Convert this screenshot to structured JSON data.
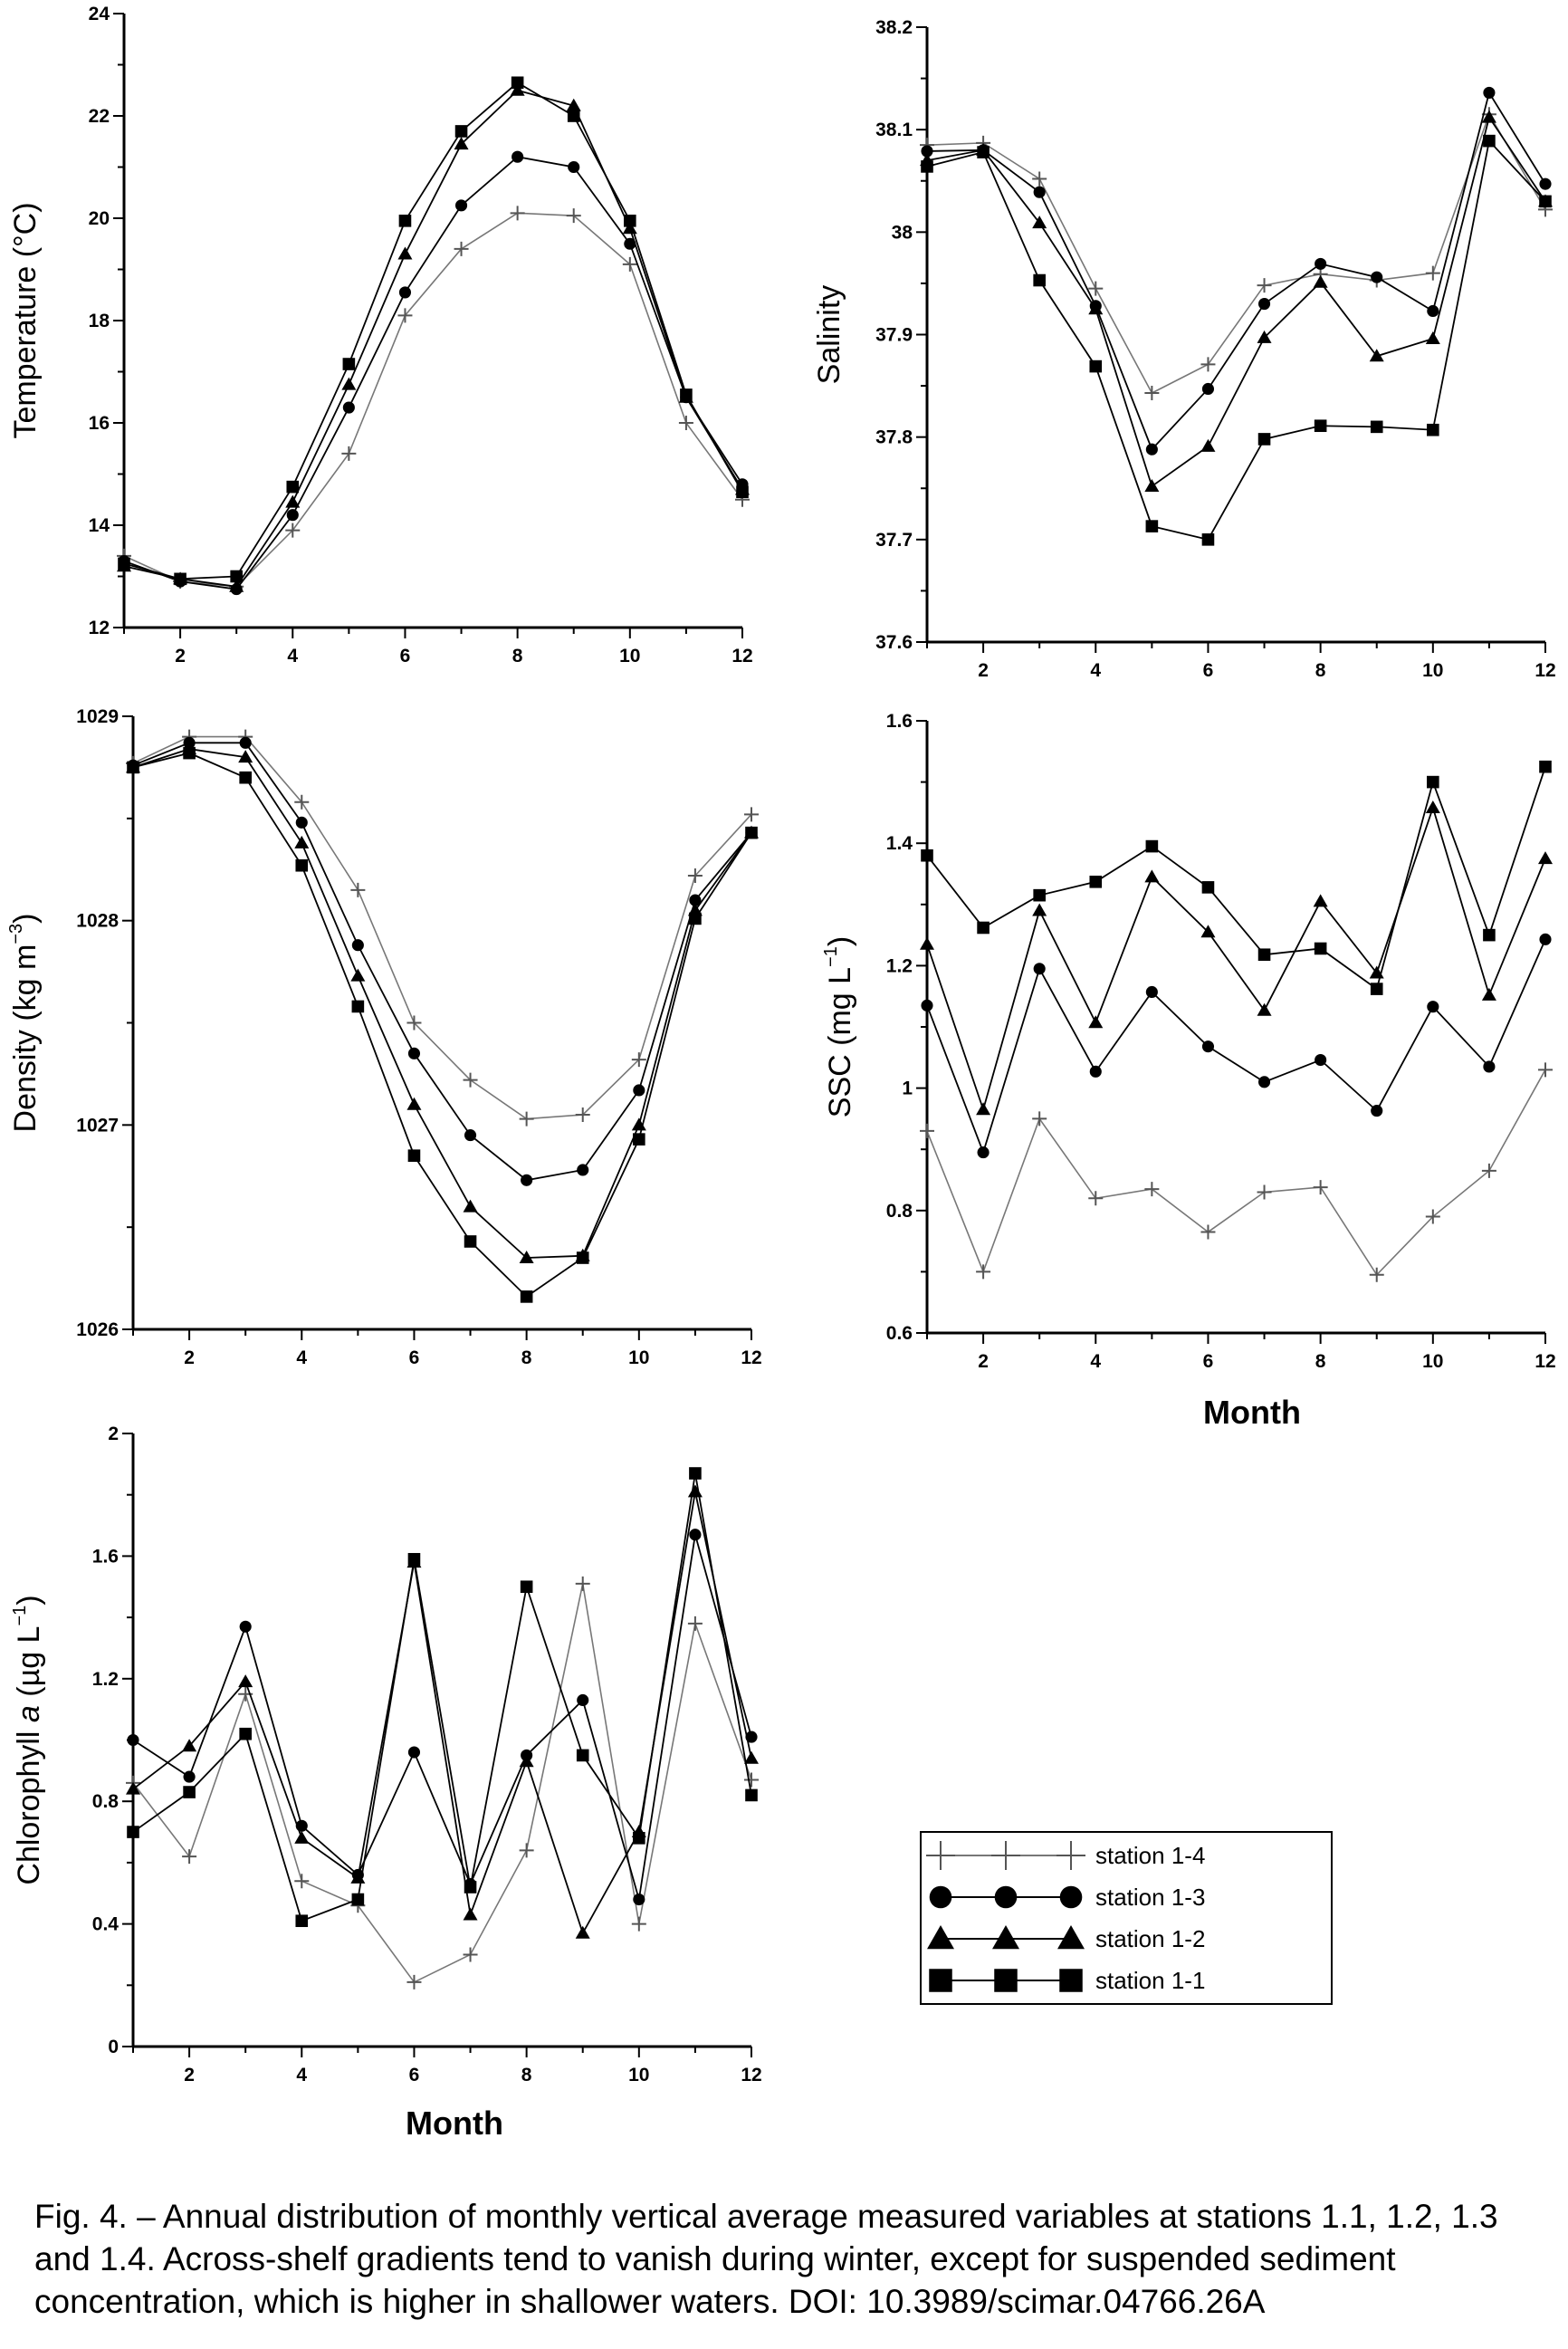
{
  "figure": {
    "month_label": "Month",
    "caption": "Fig. 4. – Annual distribution of monthly vertical average measured variables at stations 1.1, 1.2, 1.3 and 1.4. Across-shelf gradients tend to vanish during winter, except for suspended sediment concentration, which is higher in shallower waters. DOI: 10.3989/scimar.04766.26A"
  },
  "legend": [
    {
      "name": "station 1-4",
      "marker": "plus"
    },
    {
      "name": "station 1-3",
      "marker": "circle"
    },
    {
      "name": "station 1-2",
      "marker": "triangle"
    },
    {
      "name": "station 1-1",
      "marker": "square"
    }
  ],
  "colors": {
    "station 1-4": "#777777",
    "station 1-3": "#000000",
    "station 1-2": "#000000",
    "station 1-1": "#000000"
  },
  "chart_data": [
    {
      "id": "temperature",
      "type": "line",
      "ylabel": "Temperature (°C)",
      "xlabel": "",
      "xlim": [
        1,
        12
      ],
      "ylim": [
        12,
        24
      ],
      "x_ticks": [
        "2",
        "4",
        "6",
        "8",
        "10",
        "12"
      ],
      "y_ticks": [
        "12",
        "14",
        "16",
        "18",
        "20",
        "22",
        "24"
      ],
      "x": [
        1,
        2,
        3,
        4,
        5,
        6,
        7,
        8,
        9,
        10,
        11,
        12
      ],
      "series": [
        {
          "name": "station 1-4",
          "values": [
            13.4,
            12.9,
            12.8,
            13.9,
            15.4,
            18.1,
            19.4,
            20.1,
            20.05,
            19.1,
            16.0,
            14.5
          ]
        },
        {
          "name": "station 1-3",
          "values": [
            13.3,
            12.9,
            12.75,
            14.2,
            16.3,
            18.55,
            20.25,
            21.2,
            21.0,
            19.5,
            16.5,
            14.8
          ]
        },
        {
          "name": "station 1-2",
          "values": [
            13.2,
            12.95,
            12.8,
            14.45,
            16.75,
            19.3,
            21.45,
            22.5,
            22.2,
            19.8,
            16.5,
            14.7
          ]
        },
        {
          "name": "station 1-1",
          "values": [
            13.25,
            12.95,
            13.0,
            14.75,
            17.15,
            19.95,
            21.7,
            22.65,
            22.0,
            19.95,
            16.55,
            14.65
          ]
        }
      ]
    },
    {
      "id": "salinity",
      "type": "line",
      "ylabel": "Salinity",
      "xlabel": "",
      "xlim": [
        1,
        12
      ],
      "ylim": [
        37.6,
        38.2
      ],
      "x_ticks": [
        "2",
        "4",
        "6",
        "8",
        "10",
        "12"
      ],
      "y_ticks": [
        "37.6",
        "37.7",
        "37.8",
        "37.9",
        "38",
        "38.1",
        "38.2"
      ],
      "x": [
        1,
        2,
        3,
        4,
        5,
        6,
        7,
        8,
        9,
        10,
        11,
        12
      ],
      "series": [
        {
          "name": "station 1-4",
          "values": [
            38.085,
            38.087,
            38.052,
            37.945,
            37.843,
            37.871,
            37.948,
            37.959,
            37.953,
            37.96,
            38.115,
            38.022
          ]
        },
        {
          "name": "station 1-3",
          "values": [
            38.079,
            38.08,
            38.039,
            37.928,
            37.788,
            37.847,
            37.93,
            37.969,
            37.956,
            37.923,
            38.136,
            38.047
          ]
        },
        {
          "name": "station 1-2",
          "values": [
            38.07,
            38.08,
            38.009,
            37.925,
            37.752,
            37.791,
            37.897,
            37.951,
            37.879,
            37.896,
            38.112,
            38.03
          ]
        },
        {
          "name": "station 1-1",
          "values": [
            38.064,
            38.078,
            37.953,
            37.869,
            37.713,
            37.7,
            37.798,
            37.811,
            37.81,
            37.807,
            38.089,
            38.03
          ]
        }
      ]
    },
    {
      "id": "density",
      "type": "line",
      "ylabel": "Density (kg m-3)",
      "xlabel": "",
      "xlim": [
        1,
        12
      ],
      "ylim": [
        1026,
        1029
      ],
      "x_ticks": [
        "2",
        "4",
        "6",
        "8",
        "10",
        "12"
      ],
      "y_ticks": [
        "1026",
        "1027",
        "1028",
        "1029"
      ],
      "x": [
        1,
        2,
        3,
        4,
        5,
        6,
        7,
        8,
        9,
        10,
        11,
        12
      ],
      "series": [
        {
          "name": "station 1-4",
          "values": [
            1028.77,
            1028.9,
            1028.9,
            1028.58,
            1028.15,
            1027.5,
            1027.22,
            1027.03,
            1027.05,
            1027.32,
            1028.22,
            1028.52
          ]
        },
        {
          "name": "station 1-3",
          "values": [
            1028.76,
            1028.87,
            1028.87,
            1028.48,
            1027.88,
            1027.35,
            1026.95,
            1026.73,
            1026.78,
            1027.17,
            1028.1,
            1028.43
          ]
        },
        {
          "name": "station 1-2",
          "values": [
            1028.75,
            1028.84,
            1028.8,
            1028.38,
            1027.73,
            1027.1,
            1026.6,
            1026.35,
            1026.36,
            1027.0,
            1028.05,
            1028.43
          ]
        },
        {
          "name": "station 1-1",
          "values": [
            1028.75,
            1028.82,
            1028.7,
            1028.27,
            1027.58,
            1026.85,
            1026.43,
            1026.16,
            1026.35,
            1026.93,
            1028.01,
            1028.43
          ]
        }
      ]
    },
    {
      "id": "ssc",
      "type": "line",
      "ylabel": "SSC (mg L-1)",
      "xlabel": "Month",
      "xlim": [
        1,
        12
      ],
      "ylim": [
        0.6,
        1.6
      ],
      "x_ticks": [
        "2",
        "4",
        "6",
        "8",
        "10",
        "12"
      ],
      "y_ticks": [
        "0.6",
        "0.8",
        "1",
        "1.2",
        "1.4",
        "1.6"
      ],
      "x": [
        1,
        2,
        3,
        4,
        5,
        6,
        7,
        8,
        9,
        10,
        11,
        12
      ],
      "series": [
        {
          "name": "station 1-4",
          "values": [
            0.93,
            0.7,
            0.95,
            0.82,
            0.835,
            0.765,
            0.83,
            0.838,
            0.695,
            0.79,
            0.865,
            1.03
          ]
        },
        {
          "name": "station 1-3",
          "values": [
            1.135,
            0.895,
            1.195,
            1.027,
            1.157,
            1.068,
            1.01,
            1.046,
            0.963,
            1.133,
            1.035,
            1.243
          ]
        },
        {
          "name": "station 1-2",
          "values": [
            1.235,
            0.965,
            1.29,
            1.107,
            1.345,
            1.255,
            1.127,
            1.305,
            1.188,
            1.458,
            1.152,
            1.375
          ]
        },
        {
          "name": "station 1-1",
          "values": [
            1.38,
            1.262,
            1.315,
            1.337,
            1.395,
            1.328,
            1.218,
            1.228,
            1.162,
            1.5,
            1.25,
            1.525
          ]
        }
      ]
    },
    {
      "id": "chlorophyll",
      "type": "line",
      "ylabel": "Chlorophyll a (µg L-1)",
      "xlabel": "Month",
      "xlim": [
        1,
        12
      ],
      "ylim": [
        0,
        2
      ],
      "x_ticks": [
        "2",
        "4",
        "6",
        "8",
        "10",
        "12"
      ],
      "y_ticks": [
        "0",
        "0.4",
        "0.8",
        "1.2",
        "1.6",
        "2"
      ],
      "x": [
        1,
        2,
        3,
        4,
        5,
        6,
        7,
        8,
        9,
        10,
        11,
        12
      ],
      "series": [
        {
          "name": "station 1-4",
          "values": [
            0.86,
            0.62,
            1.15,
            0.54,
            0.46,
            0.21,
            0.3,
            0.64,
            1.51,
            0.4,
            1.38,
            0.87
          ]
        },
        {
          "name": "station 1-3",
          "values": [
            1.0,
            0.88,
            1.37,
            0.72,
            0.56,
            0.96,
            0.53,
            0.95,
            1.13,
            0.48,
            1.67,
            1.01
          ]
        },
        {
          "name": "station 1-2",
          "values": [
            0.84,
            0.98,
            1.19,
            0.68,
            0.55,
            1.58,
            0.43,
            0.93,
            0.37,
            0.7,
            1.81,
            0.94
          ]
        },
        {
          "name": "station 1-1",
          "values": [
            0.7,
            0.83,
            1.02,
            0.41,
            0.48,
            1.59,
            0.52,
            1.5,
            0.95,
            0.68,
            1.87,
            0.82
          ]
        }
      ]
    }
  ]
}
